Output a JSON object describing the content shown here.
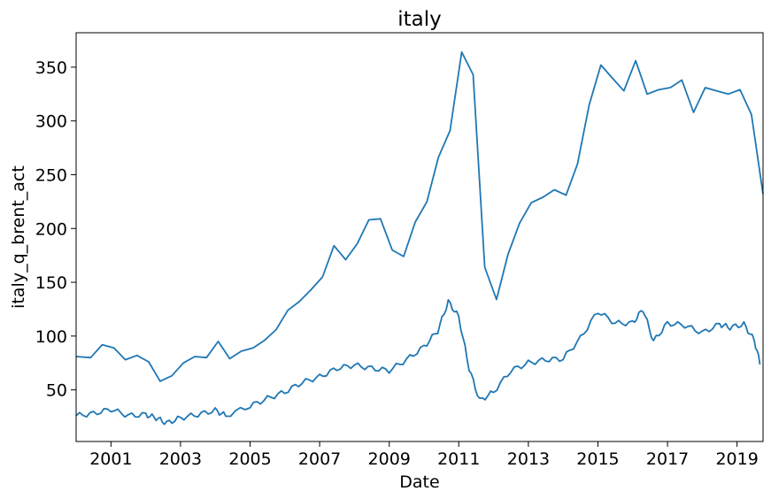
{
  "chart_data": {
    "type": "line",
    "title": "italy",
    "xlabel": "Date",
    "ylabel": "italy_q_brent_act",
    "xlim": [
      "2000-01-01",
      "2019-10-01"
    ],
    "ylim": [
      2,
      382
    ],
    "x_ticks": [
      "2001",
      "2003",
      "2005",
      "2007",
      "2009",
      "2011",
      "2013",
      "2015",
      "2017",
      "2019"
    ],
    "y_ticks": [
      50,
      100,
      150,
      200,
      250,
      300,
      350
    ],
    "grid": false,
    "legend": "none",
    "line_color": "#1f77b4",
    "series": [
      {
        "values": [
          [
            "2000-01-01",
            81
          ],
          [
            "2000-06-01",
            80
          ],
          [
            "2000-10-01",
            92
          ],
          [
            "2001-02-01",
            89
          ],
          [
            "2001-06-01",
            78
          ],
          [
            "2001-10-01",
            82
          ],
          [
            "2002-02-01",
            76
          ],
          [
            "2002-06-01",
            58
          ],
          [
            "2002-10-01",
            63
          ],
          [
            "2003-02-01",
            75
          ],
          [
            "2003-06-01",
            81
          ],
          [
            "2003-10-01",
            80
          ],
          [
            "2004-02-01",
            95
          ],
          [
            "2004-06-01",
            79
          ],
          [
            "2004-10-01",
            86
          ],
          [
            "2005-02-01",
            89
          ],
          [
            "2005-06-01",
            96
          ],
          [
            "2005-10-01",
            106
          ],
          [
            "2006-02-01",
            124
          ],
          [
            "2006-06-01",
            132
          ],
          [
            "2006-10-01",
            143
          ],
          [
            "2007-02-01",
            155
          ],
          [
            "2007-06-01",
            184
          ],
          [
            "2007-10-01",
            171
          ],
          [
            "2008-02-01",
            186
          ],
          [
            "2008-06-01",
            208
          ],
          [
            "2008-10-01",
            209
          ],
          [
            "2009-02-01",
            180
          ],
          [
            "2009-06-01",
            174
          ],
          [
            "2009-10-01",
            206
          ],
          [
            "2010-02-01",
            225
          ],
          [
            "2010-06-01",
            266
          ],
          [
            "2010-10-01",
            291
          ],
          [
            "2011-02-01",
            364
          ],
          [
            "2011-06-01",
            343
          ],
          [
            "2011-10-01",
            164
          ],
          [
            "2012-02-01",
            134
          ],
          [
            "2012-06-01",
            176
          ],
          [
            "2012-10-01",
            205
          ],
          [
            "2013-02-01",
            224
          ],
          [
            "2013-06-01",
            229
          ],
          [
            "2013-10-01",
            236
          ],
          [
            "2014-02-01",
            231
          ],
          [
            "2014-06-01",
            260
          ],
          [
            "2014-10-01",
            315
          ],
          [
            "2015-02-01",
            352
          ],
          [
            "2015-06-01",
            340
          ],
          [
            "2015-10-01",
            328
          ],
          [
            "2016-02-01",
            356
          ],
          [
            "2016-06-01",
            325
          ],
          [
            "2016-10-01",
            329
          ],
          [
            "2017-02-01",
            331
          ],
          [
            "2017-06-01",
            338
          ],
          [
            "2017-10-01",
            308
          ],
          [
            "2018-02-01",
            331
          ],
          [
            "2018-06-01",
            328
          ],
          [
            "2018-10-01",
            325
          ],
          [
            "2019-02-01",
            329
          ],
          [
            "2019-06-01",
            306
          ],
          [
            "2019-10-01",
            232
          ]
        ]
      }
    ]
  }
}
